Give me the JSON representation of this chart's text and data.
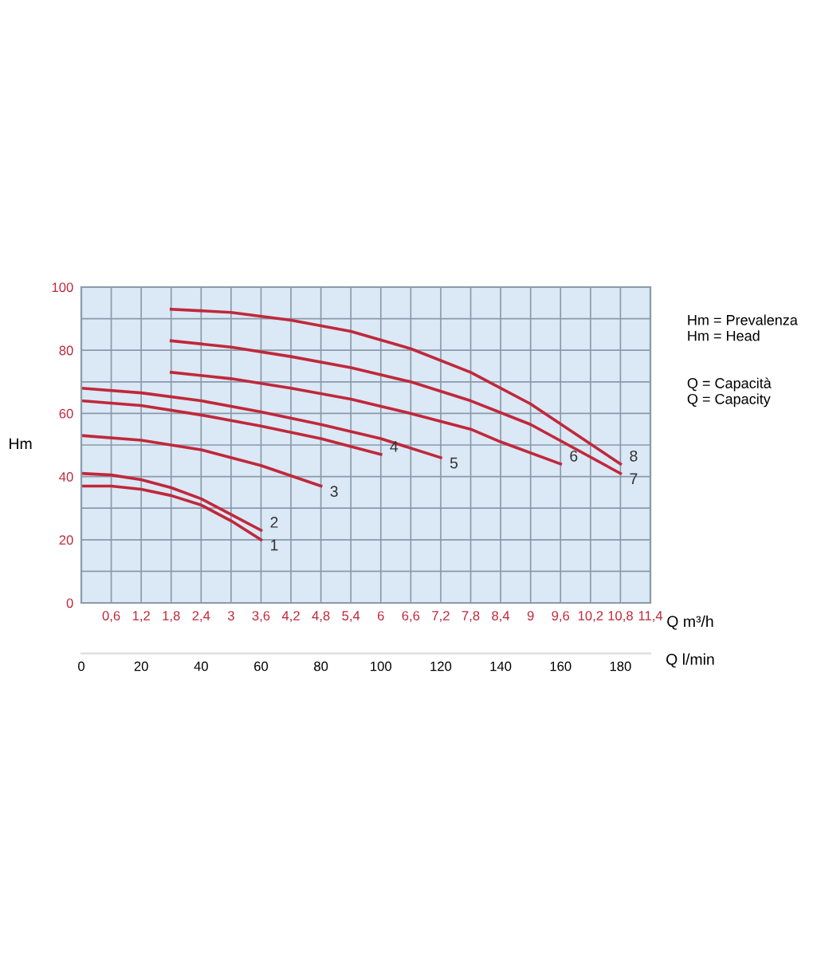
{
  "chart_data": {
    "type": "line",
    "xlabel": "Q m³/h",
    "ylabel": "Hm",
    "x2label": "Q l/min",
    "xlim": [
      0,
      11.4
    ],
    "ylim": [
      0,
      100
    ],
    "xticks": [
      {
        "value": 0,
        "label": null
      },
      {
        "value": 0.6,
        "label": "0,6"
      },
      {
        "value": 1.2,
        "label": "1,2"
      },
      {
        "value": 1.8,
        "label": "1,8"
      },
      {
        "value": 2.4,
        "label": "2,4"
      },
      3,
      {
        "value": 3.6,
        "label": "3,6"
      },
      {
        "value": 4.2,
        "label": "4,2"
      },
      {
        "value": 4.8,
        "label": "4,8"
      },
      {
        "value": 5.4,
        "label": "5,4"
      },
      6,
      {
        "value": 6.6,
        "label": "6,6"
      },
      {
        "value": 7.2,
        "label": "7,2"
      },
      {
        "value": 7.8,
        "label": "7,8"
      },
      {
        "value": 8.4,
        "label": "8,4"
      },
      9,
      {
        "value": 9.6,
        "label": "9,6"
      },
      {
        "value": 10.2,
        "label": "10,2"
      },
      {
        "value": 10.8,
        "label": "10,8"
      },
      {
        "value": 11.4,
        "label": "11,4"
      }
    ],
    "yticks": [
      0,
      {
        "value": 10,
        "label": null
      },
      20,
      {
        "value": 30,
        "label": null
      },
      40,
      {
        "value": 50,
        "label": null
      },
      60,
      {
        "value": 70,
        "label": null
      },
      80,
      {
        "value": 90,
        "label": null
      },
      100
    ],
    "x2lim": [
      0,
      190
    ],
    "x2ticks": [
      0,
      20,
      40,
      60,
      80,
      100,
      120,
      140,
      160,
      180
    ],
    "grid": true,
    "marker": "none",
    "line_style": "solid",
    "series": [
      {
        "name": "1",
        "color": "#c0283a",
        "x": [
          0,
          0.6,
          1.2,
          1.8,
          2.4,
          3.0,
          3.6
        ],
        "values": [
          37,
          37,
          36,
          34,
          31,
          26,
          20
        ]
      },
      {
        "name": "2",
        "color": "#c0283a",
        "x": [
          0,
          0.6,
          1.2,
          1.8,
          2.4,
          3.0,
          3.6
        ],
        "values": [
          41,
          40.5,
          39,
          36.5,
          33,
          28,
          23
        ]
      },
      {
        "name": "3",
        "color": "#c0283a",
        "x": [
          0,
          1.2,
          2.4,
          3.6,
          4.8
        ],
        "values": [
          53,
          51.5,
          48.5,
          43.5,
          37
        ]
      },
      {
        "name": "4",
        "color": "#c0283a",
        "x": [
          0,
          1.2,
          2.4,
          3.6,
          4.8,
          6.0
        ],
        "values": [
          64,
          62.5,
          59.5,
          56,
          52,
          47
        ]
      },
      {
        "name": "5",
        "color": "#c0283a",
        "x": [
          0,
          1.2,
          2.4,
          3.6,
          4.8,
          6.0,
          7.2
        ],
        "values": [
          68,
          66.5,
          64,
          60.5,
          56.5,
          52,
          46
        ]
      },
      {
        "name": "6",
        "color": "#c0283a",
        "x": [
          1.8,
          3.0,
          4.2,
          5.4,
          6.6,
          7.8,
          8.4,
          9.6
        ],
        "values": [
          73,
          71,
          68,
          64.5,
          60,
          55,
          51,
          44
        ]
      },
      {
        "name": "7",
        "color": "#c0283a",
        "x": [
          1.8,
          3.0,
          4.2,
          5.4,
          6.6,
          7.8,
          9.0,
          10.8
        ],
        "values": [
          83,
          81,
          78,
          74.5,
          70,
          64,
          56.5,
          41
        ]
      },
      {
        "name": "8",
        "color": "#c0283a",
        "x": [
          1.8,
          3.0,
          4.2,
          5.4,
          6.6,
          7.8,
          9.0,
          10.8
        ],
        "values": [
          93,
          92,
          89.5,
          86,
          80.5,
          73,
          63,
          44
        ]
      }
    ],
    "annotations": [
      "Hm = Prevalenza",
      "Hm = Head",
      "Q = Capacità",
      "Q = Capacity"
    ]
  }
}
